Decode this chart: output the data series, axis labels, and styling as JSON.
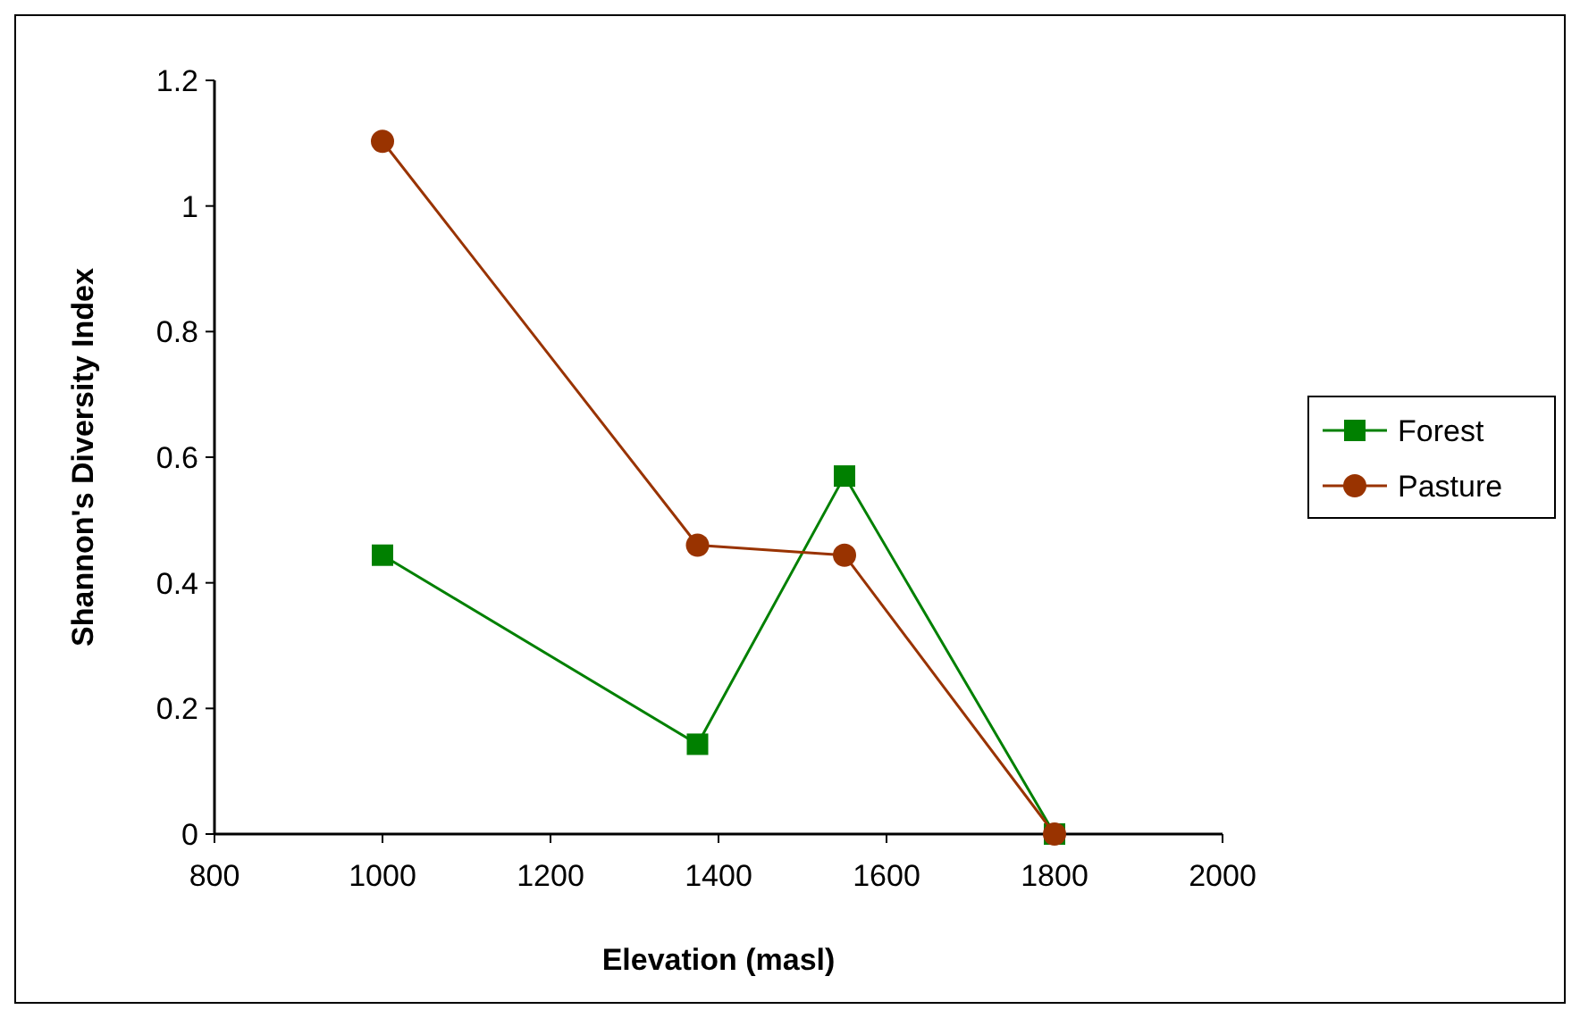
{
  "chart_data": {
    "type": "line",
    "xlabel": "Elevation (masl)",
    "ylabel": "Shannon's Diversity Index",
    "x": [
      1000,
      1375,
      1550,
      1800
    ],
    "series": [
      {
        "name": "Forest",
        "color": "#008000",
        "marker": "square",
        "values": [
          0.444,
          0.143,
          0.57,
          0
        ]
      },
      {
        "name": "Pasture",
        "color": "#993300",
        "marker": "circle",
        "values": [
          1.103,
          0.46,
          0.444,
          0
        ]
      }
    ],
    "xlim": [
      800,
      2000
    ],
    "xticks": [
      800,
      1000,
      1200,
      1400,
      1600,
      1800,
      2000
    ],
    "ylim": [
      0,
      1.2
    ],
    "yticks": [
      {
        "value": 0,
        "label": "0"
      },
      {
        "value": 0.2,
        "label": "0.2"
      },
      {
        "value": 0.4,
        "label": "0.4"
      },
      {
        "value": 0.6,
        "label": "0.6"
      },
      {
        "value": 0.8,
        "label": "0.8"
      },
      {
        "value": 1,
        "label": "1"
      },
      {
        "value": 1.2,
        "label": "1.2"
      }
    ],
    "grid": false,
    "legend": "right"
  }
}
